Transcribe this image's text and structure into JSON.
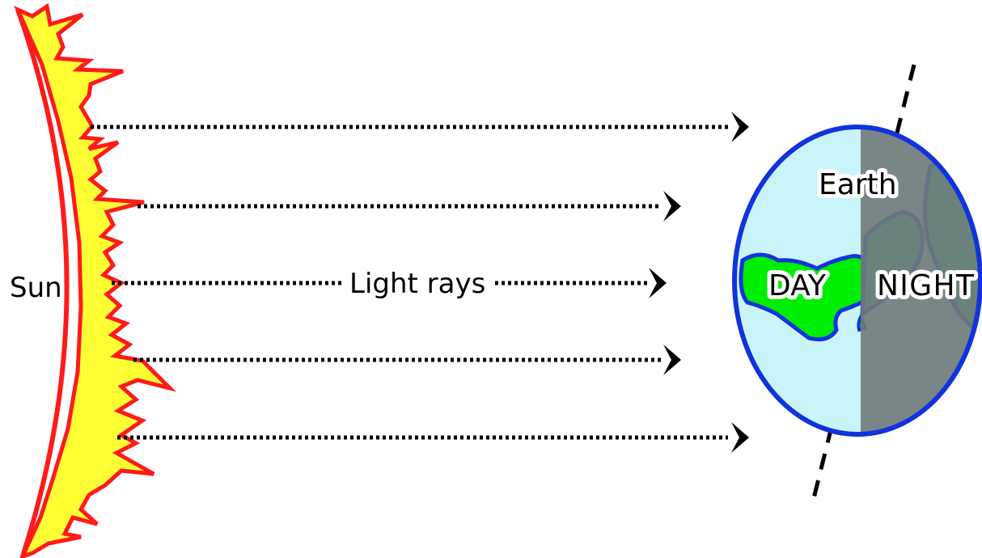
{
  "labels": {
    "sun": "Sun",
    "light_rays": "Light rays",
    "earth": "Earth",
    "day": "DAY",
    "night": "NIGHT"
  },
  "colors": {
    "sun_fill": "#ffff33",
    "sun_outline": "#ff1a1a",
    "ocean": "#c8f4fa",
    "land": "#00ee00",
    "earth_outline": "#1133dd",
    "night_overlay": "#707a78",
    "ray": "#000000"
  }
}
